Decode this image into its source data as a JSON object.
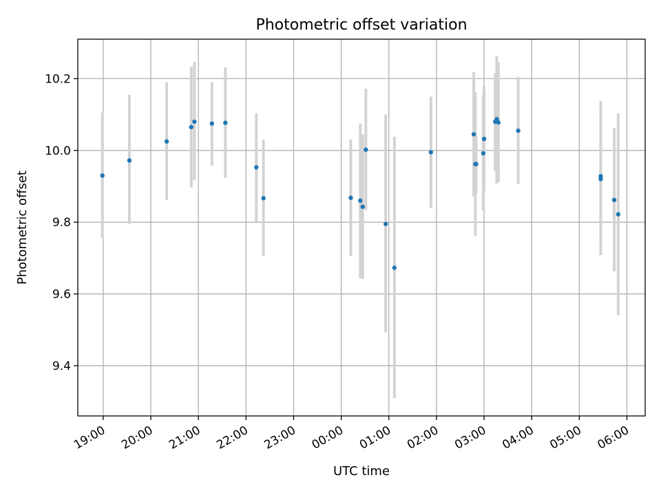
{
  "chart_data": {
    "type": "scatter",
    "title": "Photometric offset variation",
    "xlabel": "UTC time",
    "ylabel": "Photometric offset",
    "x_axis_type": "time",
    "x_ticks": [
      "19:00",
      "20:00",
      "21:00",
      "22:00",
      "23:00",
      "00:00",
      "01:00",
      "02:00",
      "03:00",
      "04:00",
      "05:00",
      "06:00"
    ],
    "xlim": [
      "18:28",
      "06:23"
    ],
    "ylim": [
      9.26,
      10.31
    ],
    "y_ticks": [
      9.4,
      9.6,
      9.8,
      10.0,
      10.2
    ],
    "y_tick_labels": [
      "9.4",
      "9.6",
      "9.8",
      "10.0",
      "10.2"
    ],
    "grid": true,
    "marker_color": "#1f77b4",
    "errorbar_color": "#d3d3d3",
    "points": [
      {
        "t": "18:59",
        "y": 9.93,
        "lo": 9.755,
        "hi": 10.105
      },
      {
        "t": "19:33",
        "y": 9.972,
        "lo": 9.795,
        "hi": 10.155
      },
      {
        "t": "20:20",
        "y": 10.025,
        "lo": 9.862,
        "hi": 10.19
      },
      {
        "t": "20:51",
        "y": 10.065,
        "lo": 9.897,
        "hi": 10.233
      },
      {
        "t": "20:55",
        "y": 10.08,
        "lo": 9.917,
        "hi": 10.247
      },
      {
        "t": "21:17",
        "y": 10.075,
        "lo": 9.958,
        "hi": 10.19
      },
      {
        "t": "21:34",
        "y": 10.077,
        "lo": 9.924,
        "hi": 10.232
      },
      {
        "t": "22:13",
        "y": 9.953,
        "lo": 9.802,
        "hi": 10.103
      },
      {
        "t": "22:22",
        "y": 9.867,
        "lo": 9.705,
        "hi": 10.03
      },
      {
        "t": "00:12",
        "y": 9.868,
        "lo": 9.706,
        "hi": 10.03
      },
      {
        "t": "00:24",
        "y": 9.86,
        "lo": 9.643,
        "hi": 10.075
      },
      {
        "t": "00:27",
        "y": 9.843,
        "lo": 9.642,
        "hi": 10.045
      },
      {
        "t": "00:31",
        "y": 10.002,
        "lo": 9.834,
        "hi": 10.172
      },
      {
        "t": "00:56",
        "y": 9.795,
        "lo": 9.493,
        "hi": 10.1
      },
      {
        "t": "01:07",
        "y": 9.673,
        "lo": 9.31,
        "hi": 10.038
      },
      {
        "t": "01:53",
        "y": 9.995,
        "lo": 9.84,
        "hi": 10.15
      },
      {
        "t": "02:47",
        "y": 10.045,
        "lo": 9.872,
        "hi": 10.218
      },
      {
        "t": "02:49",
        "y": 9.962,
        "lo": 9.762,
        "hi": 10.162
      },
      {
        "t": "02:50",
        "y": 9.962,
        "lo": 9.88,
        "hi": 10.04
      },
      {
        "t": "02:59",
        "y": 9.992,
        "lo": 9.832,
        "hi": 10.155
      },
      {
        "t": "03:00",
        "y": 10.032,
        "lo": 9.885,
        "hi": 10.18
      },
      {
        "t": "03:14",
        "y": 10.08,
        "lo": 9.942,
        "hi": 10.215
      },
      {
        "t": "03:16",
        "y": 10.087,
        "lo": 9.908,
        "hi": 10.263
      },
      {
        "t": "03:18",
        "y": 10.078,
        "lo": 9.912,
        "hi": 10.245
      },
      {
        "t": "03:43",
        "y": 10.055,
        "lo": 9.907,
        "hi": 10.205
      },
      {
        "t": "05:27",
        "y": 9.928,
        "lo": 9.708,
        "hi": 10.138
      },
      {
        "t": "05:27",
        "y": 9.92,
        "lo": 9.75,
        "hi": 10.09
      },
      {
        "t": "05:44",
        "y": 9.862,
        "lo": 9.663,
        "hi": 10.062
      },
      {
        "t": "05:49",
        "y": 9.822,
        "lo": 9.541,
        "hi": 10.103
      }
    ]
  }
}
